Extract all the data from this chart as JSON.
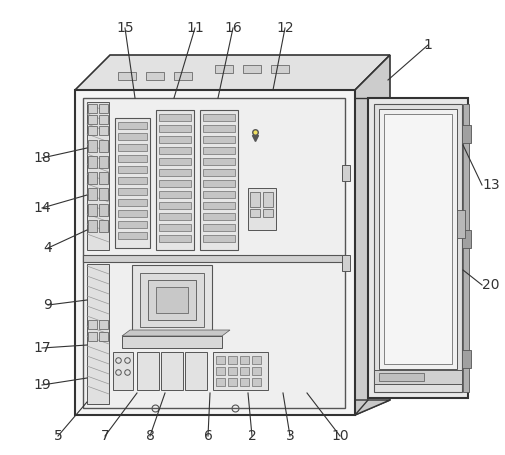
{
  "bg_color": "#ffffff",
  "lc": "#555555",
  "lc_dark": "#333333",
  "cabinet_front_fc": "#f5f5f5",
  "cabinet_top_fc": "#e2e2e2",
  "cabinet_side_fc": "#cccccc",
  "inner_fc": "#ebebeb",
  "shelf_fc": "#d5d5d5",
  "module_fc": "#e8e8e8",
  "module_bar_fc": "#c8c8c8",
  "strip_fc": "#dcdcdc",
  "strip_cell_fc": "#b8b8b8",
  "door_outer_fc": "#e8e8e8",
  "door_inner_fc": "#f2f2f2",
  "door_panel_fc": "#f8f8f8",
  "door_side_fc": "#c0c0c0",
  "ann_color": "#333333"
}
